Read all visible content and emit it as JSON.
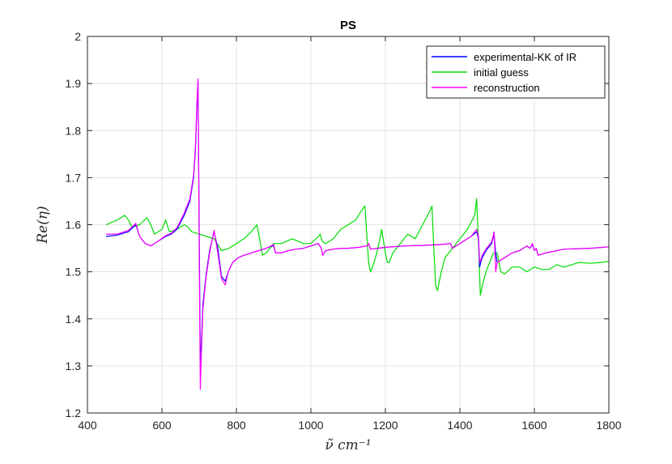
{
  "chart_data": {
    "type": "line",
    "title": "PS",
    "xlabel": "ν̃ cm⁻¹",
    "ylabel": "Re(η)",
    "xlim": [
      400,
      1800
    ],
    "ylim": [
      1.2,
      2.0
    ],
    "xticks": [
      "400",
      "600",
      "800",
      "1000",
      "1200",
      "1400",
      "1600",
      "1800"
    ],
    "yticks": [
      "1.2",
      "1.3",
      "1.4",
      "1.5",
      "1.6",
      "1.7",
      "1.8",
      "1.9",
      "2"
    ],
    "grid": true,
    "legend_position": "top-right",
    "series": [
      {
        "name": "experimental-KK of IR",
        "color": "#0000ff",
        "x": [
          450,
          480,
          510,
          530,
          540,
          555,
          570,
          590,
          610,
          625,
          640,
          660,
          675,
          685,
          690,
          694,
          697,
          700,
          703,
          706,
          710,
          718,
          728,
          740,
          750,
          760,
          770,
          778,
          790,
          805,
          820,
          840,
          860,
          880,
          895,
          900,
          905,
          920,
          940,
          960,
          980,
          1000,
          1020,
          1028,
          1032,
          1040,
          1060,
          1080,
          1100,
          1130,
          1150,
          1155,
          1160,
          1180,
          1200,
          1250,
          1300,
          1350,
          1375,
          1380,
          1390,
          1410,
          1430,
          1445,
          1450,
          1453,
          1456,
          1460,
          1470,
          1485,
          1492,
          1496,
          1500,
          1520,
          1540,
          1560,
          1580,
          1588,
          1595,
          1600,
          1605,
          1610,
          1630,
          1680,
          1750,
          1800
        ],
        "y": [
          1.575,
          1.578,
          1.585,
          1.6,
          1.575,
          1.56,
          1.555,
          1.565,
          1.575,
          1.58,
          1.59,
          1.62,
          1.65,
          1.7,
          1.76,
          1.85,
          1.905,
          1.6,
          1.3,
          1.35,
          1.43,
          1.49,
          1.545,
          1.585,
          1.55,
          1.49,
          1.48,
          1.5,
          1.52,
          1.53,
          1.535,
          1.54,
          1.545,
          1.55,
          1.555,
          1.555,
          1.54,
          1.54,
          1.545,
          1.548,
          1.55,
          1.555,
          1.56,
          1.55,
          1.535,
          1.545,
          1.548,
          1.55,
          1.55,
          1.552,
          1.555,
          1.56,
          1.548,
          1.55,
          1.552,
          1.555,
          1.556,
          1.558,
          1.56,
          1.55,
          1.555,
          1.565,
          1.575,
          1.585,
          1.57,
          1.51,
          1.52,
          1.53,
          1.545,
          1.56,
          1.58,
          1.54,
          1.52,
          1.53,
          1.54,
          1.545,
          1.555,
          1.55,
          1.558,
          1.545,
          1.55,
          1.535,
          1.54,
          1.548,
          1.55,
          1.553
        ]
      },
      {
        "name": "initial guess",
        "color": "#00dd00",
        "x": [
          450,
          480,
          500,
          510,
          520,
          540,
          560,
          570,
          580,
          600,
          610,
          620,
          640,
          660,
          670,
          680,
          700,
          720,
          740,
          760,
          780,
          800,
          820,
          840,
          855,
          860,
          870,
          880,
          890,
          900,
          920,
          950,
          980,
          1000,
          1020,
          1025,
          1030,
          1040,
          1060,
          1080,
          1100,
          1120,
          1140,
          1145,
          1150,
          1155,
          1160,
          1170,
          1180,
          1190,
          1200,
          1205,
          1210,
          1220,
          1240,
          1260,
          1280,
          1300,
          1320,
          1325,
          1330,
          1335,
          1340,
          1350,
          1360,
          1380,
          1400,
          1420,
          1440,
          1445,
          1450,
          1455,
          1460,
          1470,
          1480,
          1490,
          1500,
          1510,
          1520,
          1540,
          1560,
          1580,
          1600,
          1620,
          1640,
          1660,
          1680,
          1700,
          1720,
          1750,
          1780,
          1800
        ],
        "y": [
          1.6,
          1.61,
          1.62,
          1.61,
          1.595,
          1.6,
          1.615,
          1.6,
          1.58,
          1.59,
          1.61,
          1.585,
          1.59,
          1.6,
          1.595,
          1.585,
          1.58,
          1.575,
          1.57,
          1.545,
          1.55,
          1.56,
          1.57,
          1.585,
          1.6,
          1.58,
          1.535,
          1.54,
          1.55,
          1.56,
          1.56,
          1.57,
          1.56,
          1.56,
          1.575,
          1.58,
          1.565,
          1.56,
          1.57,
          1.59,
          1.6,
          1.61,
          1.635,
          1.64,
          1.58,
          1.52,
          1.5,
          1.52,
          1.55,
          1.59,
          1.54,
          1.52,
          1.52,
          1.54,
          1.56,
          1.58,
          1.57,
          1.6,
          1.63,
          1.64,
          1.55,
          1.47,
          1.46,
          1.5,
          1.53,
          1.55,
          1.57,
          1.59,
          1.62,
          1.655,
          1.56,
          1.45,
          1.47,
          1.5,
          1.52,
          1.54,
          1.54,
          1.5,
          1.495,
          1.51,
          1.51,
          1.5,
          1.51,
          1.505,
          1.505,
          1.515,
          1.51,
          1.515,
          1.52,
          1.518,
          1.52,
          1.522
        ]
      },
      {
        "name": "reconstruction",
        "color": "#ff00ff",
        "x": [
          450,
          480,
          510,
          530,
          540,
          555,
          570,
          590,
          610,
          625,
          640,
          660,
          675,
          685,
          690,
          694,
          697,
          700,
          703,
          706,
          710,
          718,
          728,
          740,
          750,
          760,
          770,
          778,
          790,
          805,
          820,
          840,
          860,
          880,
          895,
          900,
          905,
          920,
          940,
          960,
          980,
          1000,
          1020,
          1028,
          1032,
          1040,
          1060,
          1080,
          1100,
          1130,
          1150,
          1155,
          1160,
          1180,
          1200,
          1250,
          1300,
          1350,
          1375,
          1380,
          1390,
          1410,
          1430,
          1445,
          1450,
          1453,
          1456,
          1460,
          1470,
          1485,
          1492,
          1496,
          1500,
          1520,
          1540,
          1560,
          1580,
          1588,
          1595,
          1600,
          1605,
          1610,
          1630,
          1680,
          1750,
          1800
        ],
        "y": [
          1.58,
          1.58,
          1.588,
          1.603,
          1.575,
          1.56,
          1.555,
          1.565,
          1.577,
          1.582,
          1.593,
          1.625,
          1.655,
          1.705,
          1.77,
          1.86,
          1.91,
          1.55,
          1.25,
          1.33,
          1.42,
          1.485,
          1.54,
          1.588,
          1.54,
          1.485,
          1.472,
          1.5,
          1.52,
          1.53,
          1.535,
          1.54,
          1.545,
          1.55,
          1.556,
          1.558,
          1.54,
          1.54,
          1.545,
          1.548,
          1.55,
          1.555,
          1.56,
          1.55,
          1.535,
          1.545,
          1.548,
          1.55,
          1.55,
          1.552,
          1.555,
          1.56,
          1.548,
          1.55,
          1.552,
          1.555,
          1.556,
          1.558,
          1.56,
          1.55,
          1.555,
          1.565,
          1.575,
          1.59,
          1.575,
          1.52,
          1.525,
          1.535,
          1.548,
          1.563,
          1.585,
          1.5,
          1.52,
          1.53,
          1.54,
          1.545,
          1.555,
          1.55,
          1.56,
          1.545,
          1.55,
          1.535,
          1.54,
          1.548,
          1.55,
          1.553
        ]
      }
    ]
  }
}
